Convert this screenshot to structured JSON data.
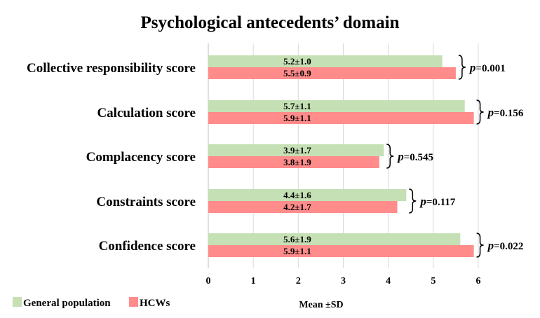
{
  "chart_data": {
    "type": "bar",
    "orientation": "horizontal",
    "title": "Psychological antecedents’ domain",
    "xlabel": "Mean ±SD",
    "xlim": [
      0,
      6
    ],
    "xticks": [
      "0",
      "1",
      "2",
      "3",
      "4",
      "5",
      "6"
    ],
    "grid": true,
    "legend_position": "bottom-left",
    "categories": [
      "Collective responsibility score",
      "Calculation score",
      "Complacency score",
      "Constraints score",
      "Confidence score"
    ],
    "series": [
      {
        "name": "General population",
        "color": "#c5e0b4",
        "values": [
          5.2,
          5.7,
          3.9,
          4.4,
          5.6
        ],
        "labels": [
          "5.2±1.0",
          "5.7±1.1",
          "3.9±1.7",
          "4.4±1.6",
          "5.6±1.9"
        ]
      },
      {
        "name": "HCWs",
        "color": "#ff8b8b",
        "values": [
          5.5,
          5.9,
          3.8,
          4.2,
          5.9
        ],
        "labels": [
          "5.5±0.9",
          "5.9±1.1",
          "3.8±1.9",
          "4.2±1.7",
          "5.9±1.1"
        ]
      }
    ],
    "p_symbol": "p",
    "p_values": [
      "=0.001",
      "=0.156",
      "=0.545",
      "=0.117",
      "=0.022"
    ]
  }
}
